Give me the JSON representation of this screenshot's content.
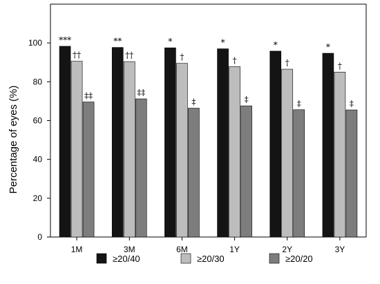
{
  "chart_data": {
    "type": "bar",
    "title": "",
    "xlabel": "",
    "ylabel": "Percentage of eyes (%)",
    "ylim": [
      0,
      120
    ],
    "yticks": [
      0,
      20,
      40,
      60,
      80,
      100
    ],
    "categories": [
      "1M",
      "3M",
      "6M",
      "1Y",
      "2Y",
      "3Y"
    ],
    "series": [
      {
        "name": "≥20/40",
        "color": "#141414",
        "values": [
          98.3,
          97.7,
          97.5,
          97.0,
          95.8,
          94.7
        ],
        "annotations": [
          "***",
          "**",
          "*",
          "*",
          "*",
          "*"
        ]
      },
      {
        "name": "≥20/30",
        "color": "#bdbdbd",
        "values": [
          90.6,
          90.4,
          89.5,
          87.8,
          86.5,
          85.0
        ],
        "annotations": [
          "††",
          "††",
          "†",
          "†",
          "†",
          "†"
        ]
      },
      {
        "name": "≥20/20",
        "color": "#7d7d7d",
        "values": [
          69.6,
          71.2,
          66.4,
          67.6,
          65.6,
          65.5
        ],
        "annotations": [
          "‡‡",
          "‡‡",
          "‡",
          "‡",
          "‡",
          "‡"
        ]
      }
    ],
    "grid": false,
    "legend_position": "bottom"
  }
}
